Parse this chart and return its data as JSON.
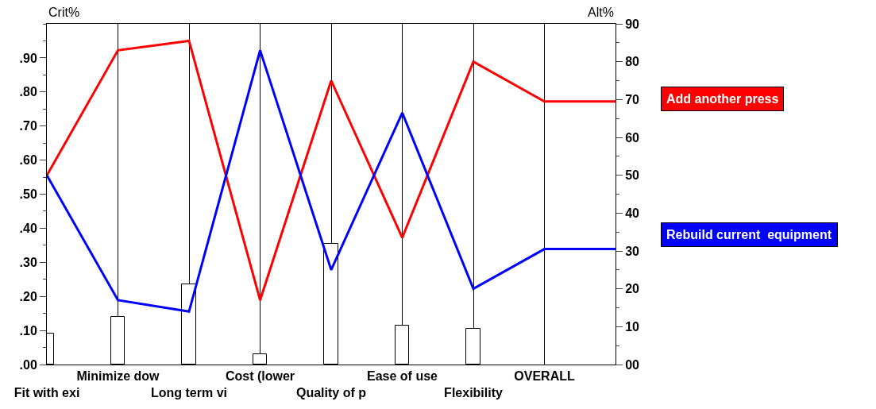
{
  "chart_data": {
    "type": "line",
    "ylabel": "Crit%",
    "y2label": "Alt%",
    "categories": [
      "Fit with exi",
      "Minimize dow",
      "Long term vi",
      "Cost (lower",
      "Quality of p",
      "Ease of use",
      "Flexibility",
      "OVERALL",
      null
    ],
    "series": [
      {
        "type": "bar",
        "color": "#ffffff",
        "values": [
          0.09,
          0.14,
          0.235,
          0.03,
          0.355,
          0.115,
          0.105,
          null,
          null
        ]
      },
      {
        "name": "Add another press",
        "color": "#ff0000",
        "axis": "y2",
        "values": [
          50,
          83,
          85.5,
          17,
          75,
          33.5,
          80,
          69.5,
          69.5
        ]
      },
      {
        "name": "Rebuild current  equipment",
        "color": "#0000ff",
        "axis": "y2",
        "values": [
          50,
          17,
          14,
          83,
          25,
          66.5,
          20,
          30.5,
          30.5
        ]
      }
    ],
    "ylim": [
      0,
      1
    ],
    "yticks": [
      {
        "value": 0,
        "label": ".00"
      },
      {
        "value": 0.1,
        "label": ".10"
      },
      {
        "value": 0.2,
        "label": ".20"
      },
      {
        "value": 0.3,
        "label": ".30"
      },
      {
        "value": 0.4,
        "label": ".40"
      },
      {
        "value": 0.5,
        "label": ".50"
      },
      {
        "value": 0.6,
        "label": ".60"
      },
      {
        "value": 0.7,
        "label": ".70"
      },
      {
        "value": 0.8,
        "label": ".80"
      },
      {
        "value": 0.9,
        "label": ".90"
      }
    ],
    "y2lim": [
      0,
      90
    ],
    "y2ticks": [
      {
        "value": 0,
        "label": "00"
      },
      10,
      20,
      30,
      40,
      50,
      60,
      70,
      80,
      90
    ],
    "grid": "x",
    "legend": "right",
    "marker": "none",
    "line_style": "solid"
  }
}
